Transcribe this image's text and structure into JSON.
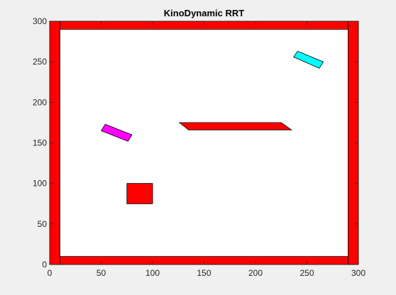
{
  "chart_data": {
    "type": "scatter",
    "title": "KinoDynamic RRT",
    "xlabel": "",
    "ylabel": "",
    "xlim": [
      0,
      300
    ],
    "ylim": [
      0,
      300
    ],
    "grid": false,
    "x_ticks": [
      0,
      50,
      100,
      150,
      200,
      250,
      300
    ],
    "y_ticks": [
      0,
      50,
      100,
      150,
      200,
      250,
      300
    ],
    "colors": {
      "obstacle": "#ff0000",
      "start": "#ff00ff",
      "goal": "#00ffff",
      "axes_bg": "#ffffff",
      "figure_bg": "#f0f0f0"
    },
    "obstacles": [
      {
        "name": "wall-bottom",
        "points": [
          [
            0,
            0
          ],
          [
            300,
            0
          ],
          [
            300,
            10
          ],
          [
            0,
            10
          ]
        ]
      },
      {
        "name": "wall-top",
        "points": [
          [
            0,
            290
          ],
          [
            300,
            290
          ],
          [
            300,
            300
          ],
          [
            0,
            300
          ]
        ]
      },
      {
        "name": "wall-left",
        "points": [
          [
            0,
            0
          ],
          [
            10,
            0
          ],
          [
            10,
            300
          ],
          [
            0,
            300
          ]
        ]
      },
      {
        "name": "wall-right",
        "points": [
          [
            290,
            0
          ],
          [
            300,
            0
          ],
          [
            300,
            300
          ],
          [
            290,
            300
          ]
        ]
      },
      {
        "name": "obstacle-bar",
        "points": [
          [
            126,
            175
          ],
          [
            225,
            175
          ],
          [
            235,
            166
          ],
          [
            135,
            166
          ]
        ]
      },
      {
        "name": "obstacle-square",
        "points": [
          [
            75,
            75
          ],
          [
            100,
            75
          ],
          [
            100,
            100
          ],
          [
            75,
            100
          ]
        ]
      }
    ],
    "start_vehicle": {
      "points": [
        [
          50,
          165
        ],
        [
          54,
          173
        ],
        [
          80,
          160
        ],
        [
          76,
          152
        ]
      ]
    },
    "goal_vehicle": {
      "points": [
        [
          237,
          256
        ],
        [
          241,
          263
        ],
        [
          266,
          250
        ],
        [
          262,
          242
        ]
      ]
    }
  }
}
